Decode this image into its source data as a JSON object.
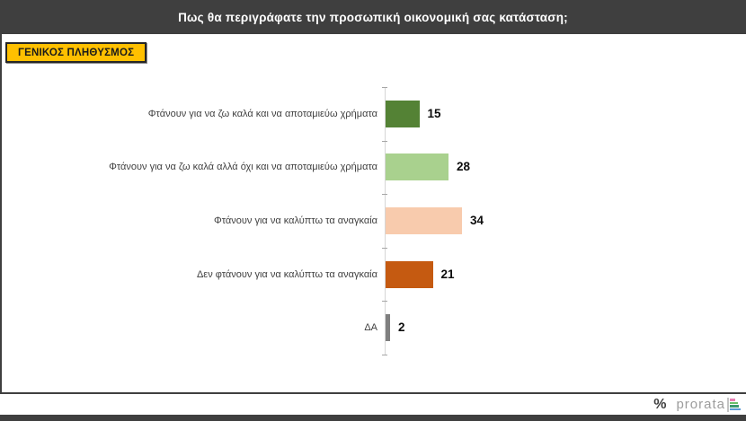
{
  "header": {
    "title": "Πως θα περιγράφατε την προσωπική οικονομική σας κατάσταση;"
  },
  "badge": {
    "label": "ΓΕΝΙΚΟΣ ΠΛΗΘΥΣΜΟΣ"
  },
  "chart_data": {
    "type": "bar",
    "orientation": "horizontal",
    "categories": [
      "Φτάνουν για να ζω καλά και να αποταμιεύω χρήματα",
      "Φτάνουν για να ζω καλά αλλά όχι και να αποταμιεύω χρήματα",
      "Φτάνουν για να καλύπτω τα αναγκαία",
      "Δεν φτάνουν για να καλύπτω τα αναγκαία",
      "ΔΑ"
    ],
    "values": [
      15,
      28,
      34,
      21,
      2
    ],
    "value_labels": [
      "15",
      "28",
      "34",
      "21",
      "2"
    ],
    "bar_colors": [
      "#548235",
      "#a9d18e",
      "#f8cbad",
      "#c55a11",
      "#7f7f7f"
    ],
    "xlim": [
      0,
      40
    ],
    "grid": false,
    "legend": false,
    "title": "Πως θα περιγράφατε την προσωπική οικονομική σας κατάσταση;"
  },
  "footer": {
    "percent_mark": "%",
    "brand": "prorata",
    "logo_line_color": "#c4c4c4",
    "logo_bars": [
      {
        "color": "#e87fb4",
        "width": 6
      },
      {
        "color": "#6abf69",
        "width": 9
      },
      {
        "color": "#3d9970",
        "width": 10
      },
      {
        "color": "#5b9bd5",
        "width": 12
      }
    ]
  },
  "colors": {
    "header_bg": "#3f3f3f",
    "badge_bg": "#ffc000",
    "frame": "#3f3f3f",
    "axis": "#d6d6d6"
  }
}
